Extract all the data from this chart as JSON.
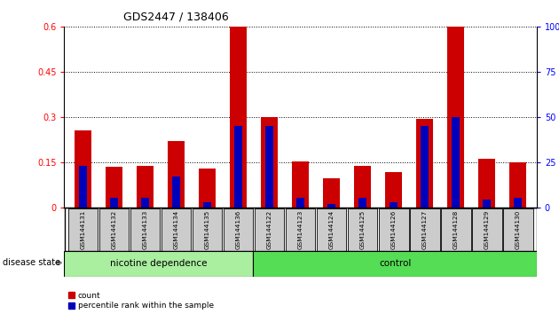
{
  "title": "GDS2447 / 138406",
  "categories": [
    "GSM144131",
    "GSM144132",
    "GSM144133",
    "GSM144134",
    "GSM144135",
    "GSM144136",
    "GSM144122",
    "GSM144123",
    "GSM144124",
    "GSM144125",
    "GSM144126",
    "GSM144127",
    "GSM144128",
    "GSM144129",
    "GSM144130"
  ],
  "count_values": [
    0.255,
    0.135,
    0.138,
    0.22,
    0.13,
    0.6,
    0.3,
    0.152,
    0.095,
    0.138,
    0.118,
    0.295,
    0.6,
    0.162,
    0.148
  ],
  "percentile_values": [
    23,
    5,
    5,
    17,
    3,
    45,
    45,
    5,
    2,
    5,
    3,
    45,
    50,
    4,
    5
  ],
  "group1_label": "nicotine dependence",
  "group2_label": "control",
  "group1_count": 6,
  "group2_count": 9,
  "disease_state_label": "disease state",
  "legend_count": "count",
  "legend_percentile": "percentile rank within the sample",
  "ylim_left": [
    0,
    0.6
  ],
  "ylim_right": [
    0,
    100
  ],
  "yticks_left": [
    0,
    0.15,
    0.3,
    0.45,
    0.6
  ],
  "yticks_right": [
    0,
    25,
    50,
    75,
    100
  ],
  "bar_color_red": "#cc0000",
  "bar_color_blue": "#0000bb",
  "group1_bg": "#aaeea0",
  "group2_bg": "#55dd55",
  "tick_bg": "#cccccc",
  "bar_width": 0.55,
  "blue_bar_width": 0.25
}
